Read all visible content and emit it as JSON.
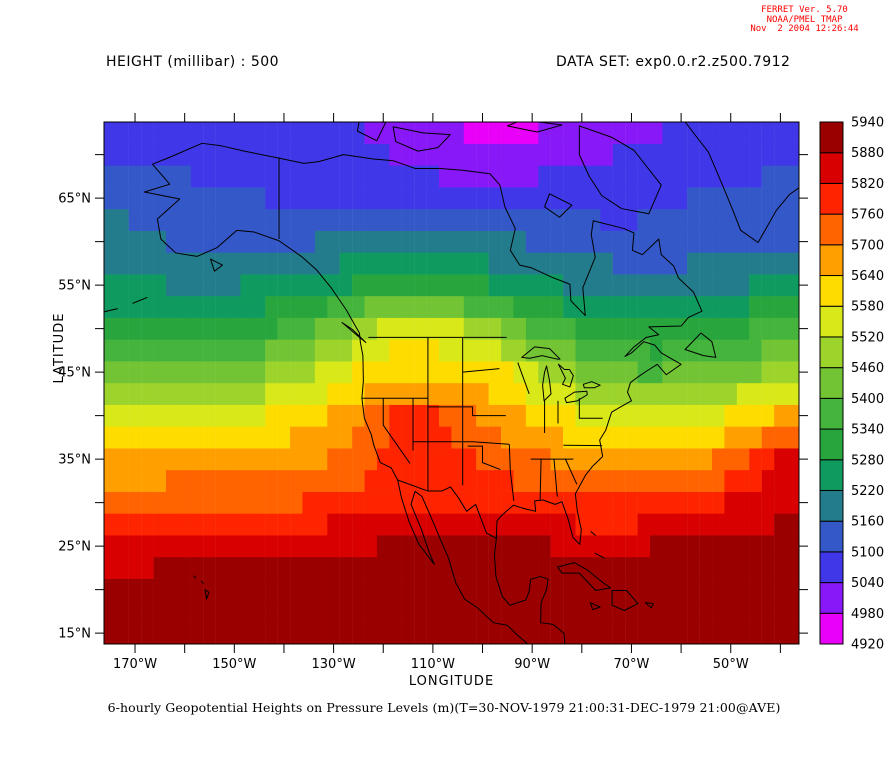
{
  "credit": {
    "line1": "FERRET Ver. 5.70",
    "line2": "NOAA/PMEL TMAP",
    "line3": "Nov  2 2004 12:26:44",
    "color": "#ff0000"
  },
  "header": {
    "left_title": "HEIGHT (millibar) : 500",
    "right_title": "DATA SET: exp0.0.r2.z500.7912"
  },
  "caption": "6-hourly Geopotential Heights on Pressure Levels (m)(T=30-NOV-1979 21:00:31-DEC-1979 21:00@AVE)",
  "axes": {
    "x_label": "LONGITUDE",
    "y_label": "LATITUDE",
    "x_tick_labels": [
      {
        "label": "170°W",
        "lon": -170
      },
      {
        "label": "150°W",
        "lon": -150
      },
      {
        "label": "130°W",
        "lon": -130
      },
      {
        "label": "110°W",
        "lon": -110
      },
      {
        "label": "90°W",
        "lon": -90
      },
      {
        "label": "70°W",
        "lon": -70
      },
      {
        "label": "50°W",
        "lon": -50
      }
    ],
    "x_minor_tick_lons": [
      -170,
      -160,
      -150,
      -140,
      -130,
      -120,
      -110,
      -100,
      -90,
      -80,
      -70,
      -60,
      -50,
      -40
    ],
    "y_tick_labels": [
      {
        "label": "15°N",
        "lat": 15
      },
      {
        "label": "25°N",
        "lat": 25
      },
      {
        "label": "35°N",
        "lat": 35
      },
      {
        "label": "45°N",
        "lat": 45
      },
      {
        "label": "55°N",
        "lat": 55
      },
      {
        "label": "65°N",
        "lat": 65
      }
    ],
    "y_minor_tick_lats": [
      15,
      20,
      25,
      30,
      35,
      40,
      45,
      50,
      55,
      60,
      65,
      70
    ]
  },
  "colorbar": {
    "levels": [
      4920,
      4980,
      5040,
      5100,
      5160,
      5220,
      5280,
      5340,
      5400,
      5460,
      5520,
      5580,
      5640,
      5700,
      5760,
      5820,
      5880,
      5940
    ],
    "colors": [
      "#e800f8",
      "#8818f8",
      "#4038e8",
      "#3458c8",
      "#237c8c",
      "#0f9b5f",
      "#28a53c",
      "#44b43c",
      "#72c434",
      "#9cd42c",
      "#d8e818",
      "#ffdc00",
      "#ffa000",
      "#ff6400",
      "#ff2400",
      "#d80000",
      "#9b0000"
    ]
  },
  "chart_data": {
    "type": "heatmap",
    "title": "HEIGHT (millibar) : 500",
    "dataset": "exp0.0.r2.z500.7912",
    "units": "m",
    "xlabel": "LONGITUDE",
    "ylabel": "LATITUDE",
    "lon_range": [
      -176.25,
      -36.25
    ],
    "lat_range": [
      13.75,
      73.75
    ],
    "cell_deg": 2.5,
    "levels": [
      4920,
      4980,
      5040,
      5100,
      5160,
      5220,
      5280,
      5340,
      5400,
      5460,
      5520,
      5580,
      5640,
      5700,
      5760,
      5820,
      5880,
      5940
    ],
    "palette": [
      "#e800f8",
      "#8818f8",
      "#4038e8",
      "#3458c8",
      "#237c8c",
      "#0f9b5f",
      "#28a53c",
      "#44b43c",
      "#72c434",
      "#9cd42c",
      "#d8e818",
      "#ffdc00",
      "#ffa000",
      "#ff6400",
      "#ff2400",
      "#d80000",
      "#9b0000"
    ],
    "grid": {
      "lons": [
        -177.5,
        -170,
        -162.5,
        -155,
        -147.5,
        -140,
        -132.5,
        -125,
        -117.5,
        -110,
        -102.5,
        -95,
        -87.5,
        -80,
        -72.5,
        -65,
        -57.5,
        -50,
        -42.5,
        -35
      ],
      "lats": [
        75,
        70,
        65,
        60,
        55,
        50,
        45,
        40,
        35,
        30,
        25,
        20,
        15,
        10
      ],
      "values": [
        [
          5070,
          5070,
          5070,
          5068,
          5065,
          5060,
          5050,
          5030,
          5000,
          4958,
          4938,
          4934,
          4950,
          4985,
          5005,
          5015,
          5040,
          5060,
          5068,
          5072
        ],
        [
          5090,
          5088,
          5085,
          5080,
          5075,
          5072,
          5068,
          5055,
          5035,
          5022,
          5015,
          5012,
          5015,
          5030,
          5040,
          5052,
          5070,
          5080,
          5086,
          5090
        ],
        [
          5162,
          5148,
          5128,
          5112,
          5102,
          5096,
          5088,
          5078,
          5068,
          5060,
          5055,
          5058,
          5065,
          5070,
          5076,
          5086,
          5100,
          5110,
          5116,
          5120
        ],
        [
          5175,
          5168,
          5158,
          5150,
          5148,
          5152,
          5160,
          5170,
          5178,
          5180,
          5175,
          5165,
          5150,
          5135,
          5120,
          5118,
          5125,
          5135,
          5145,
          5152
        ],
        [
          5232,
          5225,
          5218,
          5215,
          5222,
          5240,
          5262,
          5288,
          5305,
          5302,
          5290,
          5262,
          5232,
          5205,
          5190,
          5185,
          5195,
          5210,
          5225,
          5240
        ],
        [
          5300,
          5295,
          5290,
          5295,
          5310,
          5345,
          5400,
          5480,
          5570,
          5560,
          5500,
          5440,
          5360,
          5330,
          5295,
          5280,
          5295,
          5320,
          5350,
          5375
        ],
        [
          5425,
          5420,
          5418,
          5425,
          5445,
          5480,
          5530,
          5580,
          5615,
          5618,
          5615,
          5590,
          5490,
          5450,
          5405,
          5395,
          5410,
          5440,
          5465,
          5490
        ],
        [
          5560,
          5555,
          5555,
          5560,
          5570,
          5590,
          5620,
          5680,
          5770,
          5775,
          5710,
          5660,
          5620,
          5570,
          5535,
          5530,
          5550,
          5580,
          5620,
          5680
        ],
        [
          5655,
          5652,
          5655,
          5662,
          5670,
          5680,
          5695,
          5730,
          5800,
          5805,
          5770,
          5730,
          5700,
          5660,
          5640,
          5645,
          5675,
          5715,
          5800,
          5880
        ],
        [
          5745,
          5742,
          5745,
          5748,
          5752,
          5755,
          5765,
          5782,
          5805,
          5815,
          5805,
          5795,
          5785,
          5770,
          5760,
          5770,
          5790,
          5820,
          5855,
          5880
        ],
        [
          5858,
          5862,
          5868,
          5872,
          5870,
          5866,
          5870,
          5876,
          5884,
          5890,
          5886,
          5880,
          5882,
          5862,
          5866,
          5880,
          5890,
          5896,
          5902,
          5906
        ],
        [
          5892,
          5894,
          5898,
          5900,
          5900,
          5898,
          5898,
          5900,
          5902,
          5904,
          5902,
          5900,
          5900,
          5898,
          5898,
          5902,
          5904,
          5906,
          5908,
          5910
        ],
        [
          5906,
          5908,
          5910,
          5910,
          5910,
          5910,
          5910,
          5910,
          5912,
          5912,
          5912,
          5910,
          5910,
          5910,
          5910,
          5912,
          5912,
          5914,
          5914,
          5916
        ],
        [
          5912,
          5914,
          5916,
          5916,
          5916,
          5916,
          5916,
          5916,
          5918,
          5918,
          5918,
          5916,
          5916,
          5916,
          5916,
          5918,
          5918,
          5920,
          5920,
          5922
        ]
      ]
    }
  }
}
